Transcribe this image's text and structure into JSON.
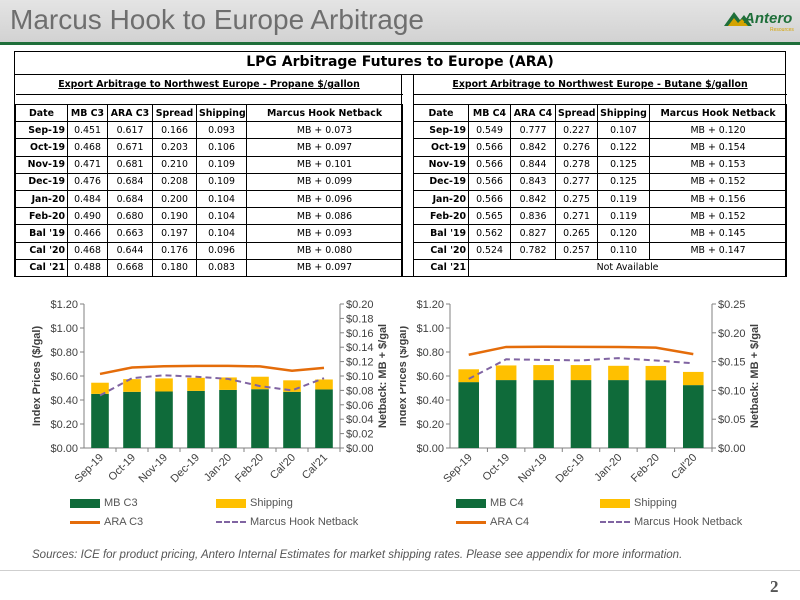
{
  "page": {
    "title": "Marcus Hook to Europe Arbitrage",
    "logo_text": "Antero",
    "logo_sub": "Resources",
    "page_number": "2",
    "source": "Sources: ICE for product pricing, Antero Internal Estimates for market shipping rates. Please see appendix for more information."
  },
  "colors": {
    "mb": "#0f6b3a",
    "shipping": "#ffc000",
    "ara": "#e46c0a",
    "netback": "#8064a2",
    "header_line": "#1f6f3a"
  },
  "table_title": "LPG Arbitrage Futures to Europe (ARA)",
  "propane": {
    "title": "Export Arbitrage to Northwest Europe - Propane $/gallon",
    "headers": [
      "Date",
      "MB C3",
      "ARA C3",
      "Spread",
      "Shipping",
      "Marcus Hook Netback"
    ],
    "rows": [
      [
        "Sep-19",
        "0.451",
        "0.617",
        "0.166",
        "0.093",
        "MB + 0.073"
      ],
      [
        "Oct-19",
        "0.468",
        "0.671",
        "0.203",
        "0.106",
        "MB + 0.097"
      ],
      [
        "Nov-19",
        "0.471",
        "0.681",
        "0.210",
        "0.109",
        "MB + 0.101"
      ],
      [
        "Dec-19",
        "0.476",
        "0.684",
        "0.208",
        "0.109",
        "MB + 0.099"
      ],
      [
        "Jan-20",
        "0.484",
        "0.684",
        "0.200",
        "0.104",
        "MB + 0.096"
      ],
      [
        "Feb-20",
        "0.490",
        "0.680",
        "0.190",
        "0.104",
        "MB + 0.086"
      ],
      [
        "Bal '19",
        "0.466",
        "0.663",
        "0.197",
        "0.104",
        "MB + 0.093"
      ],
      [
        "Cal '20",
        "0.468",
        "0.644",
        "0.176",
        "0.096",
        "MB + 0.080"
      ],
      [
        "Cal '21",
        "0.488",
        "0.668",
        "0.180",
        "0.083",
        "MB + 0.097"
      ]
    ]
  },
  "butane": {
    "title": "Export Arbitrage to Northwest Europe - Butane $/gallon",
    "headers": [
      "Date",
      "MB C4",
      "ARA C4",
      "Spread",
      "Shipping",
      "Marcus Hook Netback"
    ],
    "rows": [
      [
        "Sep-19",
        "0.549",
        "0.777",
        "0.227",
        "0.107",
        "MB + 0.120"
      ],
      [
        "Oct-19",
        "0.566",
        "0.842",
        "0.276",
        "0.122",
        "MB + 0.154"
      ],
      [
        "Nov-19",
        "0.566",
        "0.844",
        "0.278",
        "0.125",
        "MB + 0.153"
      ],
      [
        "Dec-19",
        "0.566",
        "0.843",
        "0.277",
        "0.125",
        "MB + 0.152"
      ],
      [
        "Jan-20",
        "0.566",
        "0.842",
        "0.275",
        "0.119",
        "MB + 0.156"
      ],
      [
        "Feb-20",
        "0.565",
        "0.836",
        "0.271",
        "0.119",
        "MB + 0.152"
      ],
      [
        "Bal '19",
        "0.562",
        "0.827",
        "0.265",
        "0.120",
        "MB + 0.145"
      ],
      [
        "Cal '20",
        "0.524",
        "0.782",
        "0.257",
        "0.110",
        "MB + 0.147"
      ]
    ],
    "cal21_label": "Cal '21",
    "not_available": "Not Available"
  },
  "chart_data": [
    {
      "type": "bar",
      "stacked": true,
      "categories": [
        "Sep-19",
        "Oct-19",
        "Nov-19",
        "Dec-19",
        "Jan-20",
        "Feb-20",
        "Cal'20",
        "Cal'21"
      ],
      "series": [
        {
          "name": "MB C3",
          "kind": "bar",
          "axis": "left",
          "values": [
            0.451,
            0.468,
            0.471,
            0.476,
            0.484,
            0.49,
            0.468,
            0.488
          ]
        },
        {
          "name": "Shipping",
          "kind": "bar",
          "axis": "left",
          "values": [
            0.093,
            0.106,
            0.109,
            0.109,
            0.104,
            0.104,
            0.096,
            0.083
          ]
        },
        {
          "name": "ARA C3",
          "kind": "line",
          "axis": "left",
          "values": [
            0.617,
            0.671,
            0.681,
            0.684,
            0.684,
            0.68,
            0.644,
            0.668
          ]
        },
        {
          "name": "Marcus Hook Netback",
          "kind": "line-dashed",
          "axis": "right",
          "values": [
            0.073,
            0.097,
            0.101,
            0.099,
            0.096,
            0.086,
            0.08,
            0.097
          ]
        }
      ],
      "ylabel": "Index Prices ($/gal)",
      "y2label": "Netback: MB + $/gal",
      "ylim": [
        0,
        1.2
      ],
      "y2lim": [
        0,
        0.2
      ],
      "yticks": [
        "$0.00",
        "$0.20",
        "$0.40",
        "$0.60",
        "$0.80",
        "$1.00",
        "$1.20"
      ],
      "y2ticks": [
        "$0.00",
        "$0.02",
        "$0.04",
        "$0.06",
        "$0.08",
        "$0.10",
        "$0.12",
        "$0.14",
        "$0.16",
        "$0.18",
        "$0.20"
      ],
      "legend": [
        "MB C3",
        "Shipping",
        "ARA C3",
        "Marcus Hook Netback"
      ],
      "legend_position": "bottom",
      "grid": false
    },
    {
      "type": "bar",
      "stacked": true,
      "categories": [
        "Sep-19",
        "Oct-19",
        "Nov-19",
        "Dec-19",
        "Jan-20",
        "Feb-20",
        "Cal'20"
      ],
      "series": [
        {
          "name": "MB C4",
          "kind": "bar",
          "axis": "left",
          "values": [
            0.549,
            0.566,
            0.566,
            0.566,
            0.566,
            0.565,
            0.524
          ]
        },
        {
          "name": "Shipping",
          "kind": "bar",
          "axis": "left",
          "values": [
            0.107,
            0.122,
            0.125,
            0.125,
            0.119,
            0.119,
            0.11
          ]
        },
        {
          "name": "ARA C4",
          "kind": "line",
          "axis": "left",
          "values": [
            0.777,
            0.842,
            0.844,
            0.843,
            0.842,
            0.836,
            0.782
          ]
        },
        {
          "name": "Marcus Hook Netback",
          "kind": "line-dashed",
          "axis": "right",
          "values": [
            0.12,
            0.154,
            0.153,
            0.152,
            0.156,
            0.152,
            0.147
          ]
        }
      ],
      "ylabel": "Index Prices ($/gal)",
      "y2label": "Netback: MB + $/gal",
      "ylim": [
        0,
        1.2
      ],
      "y2lim": [
        0,
        0.25
      ],
      "yticks": [
        "$0.00",
        "$0.20",
        "$0.40",
        "$0.60",
        "$0.80",
        "$1.00",
        "$1.20"
      ],
      "y2ticks": [
        "$0.00",
        "$0.05",
        "$0.10",
        "$0.15",
        "$0.20",
        "$0.25"
      ],
      "legend": [
        "MB C4",
        "Shipping",
        "ARA C4",
        "Marcus Hook Netback"
      ],
      "legend_position": "bottom",
      "grid": false
    }
  ]
}
